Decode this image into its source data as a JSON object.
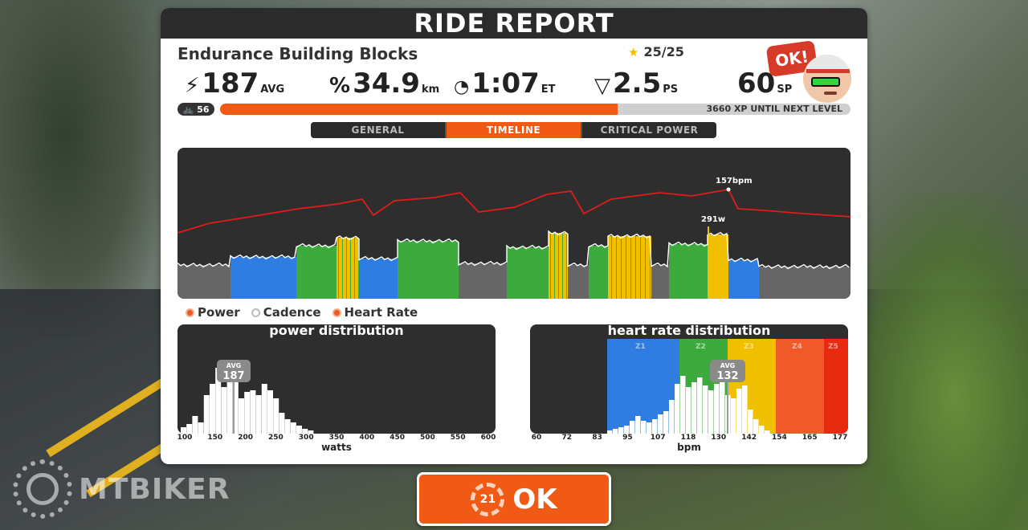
{
  "header": {
    "title": "RIDE REPORT"
  },
  "workout": {
    "name": "Endurance Building Blocks",
    "stars": "25/25"
  },
  "stats": [
    {
      "icon": "lightning-icon",
      "glyph": "⚡",
      "value": "187",
      "unit": "AVG"
    },
    {
      "icon": "distance-icon",
      "glyph": "%",
      "value": "34.9",
      "unit": "km"
    },
    {
      "icon": "clock-icon",
      "glyph": "🕓",
      "value": "1:07",
      "unit": "ET"
    },
    {
      "icon": "pizza-icon",
      "glyph": "▽",
      "value": "2.5",
      "unit": "PS"
    },
    {
      "icon": "sp-icon",
      "glyph": "",
      "value": "60",
      "unit": "SP"
    }
  ],
  "avatar": {
    "bubble": "OK!"
  },
  "level": {
    "number": "56",
    "xp_text": "3660 XP UNTIL NEXT LEVEL",
    "progress": 0.63
  },
  "tabs": [
    {
      "label": "GENERAL",
      "active": false
    },
    {
      "label": "TIMELINE",
      "active": true
    },
    {
      "label": "CRITICAL POWER",
      "active": false
    }
  ],
  "timeline": {
    "hr_peak_label": "157bpm",
    "power_peak_label": "291w"
  },
  "legend": [
    {
      "label": "Power",
      "on": true
    },
    {
      "label": "Cadence",
      "on": false
    },
    {
      "label": "Heart Rate",
      "on": true
    }
  ],
  "power_dist": {
    "title": "power distribution",
    "avg_label": "AVG",
    "avg_value": "187",
    "axis_label": "watts",
    "ticks": [
      "100",
      "150",
      "200",
      "250",
      "300",
      "350",
      "400",
      "450",
      "500",
      "550",
      "600"
    ]
  },
  "hr_dist": {
    "title": "heart rate distribution",
    "avg_label": "AVG",
    "avg_value": "132",
    "axis_label": "bpm",
    "ticks": [
      "60",
      "72",
      "83",
      "95",
      "107",
      "118",
      "130",
      "142",
      "154",
      "165",
      "177"
    ],
    "zones": [
      "Z1",
      "Z2",
      "Z3",
      "Z4",
      "Z5"
    ]
  },
  "ok_button": {
    "label": "OK",
    "ring_text": "21"
  },
  "watermark": {
    "text": "MTBIKER"
  },
  "colors": {
    "accent": "#f05a14",
    "z1": "#2f7de0",
    "z2": "#3caa3c",
    "z3": "#f0c000",
    "z4": "#f05a28",
    "z5": "#e82a10",
    "hr_line": "#e01c1c"
  }
}
